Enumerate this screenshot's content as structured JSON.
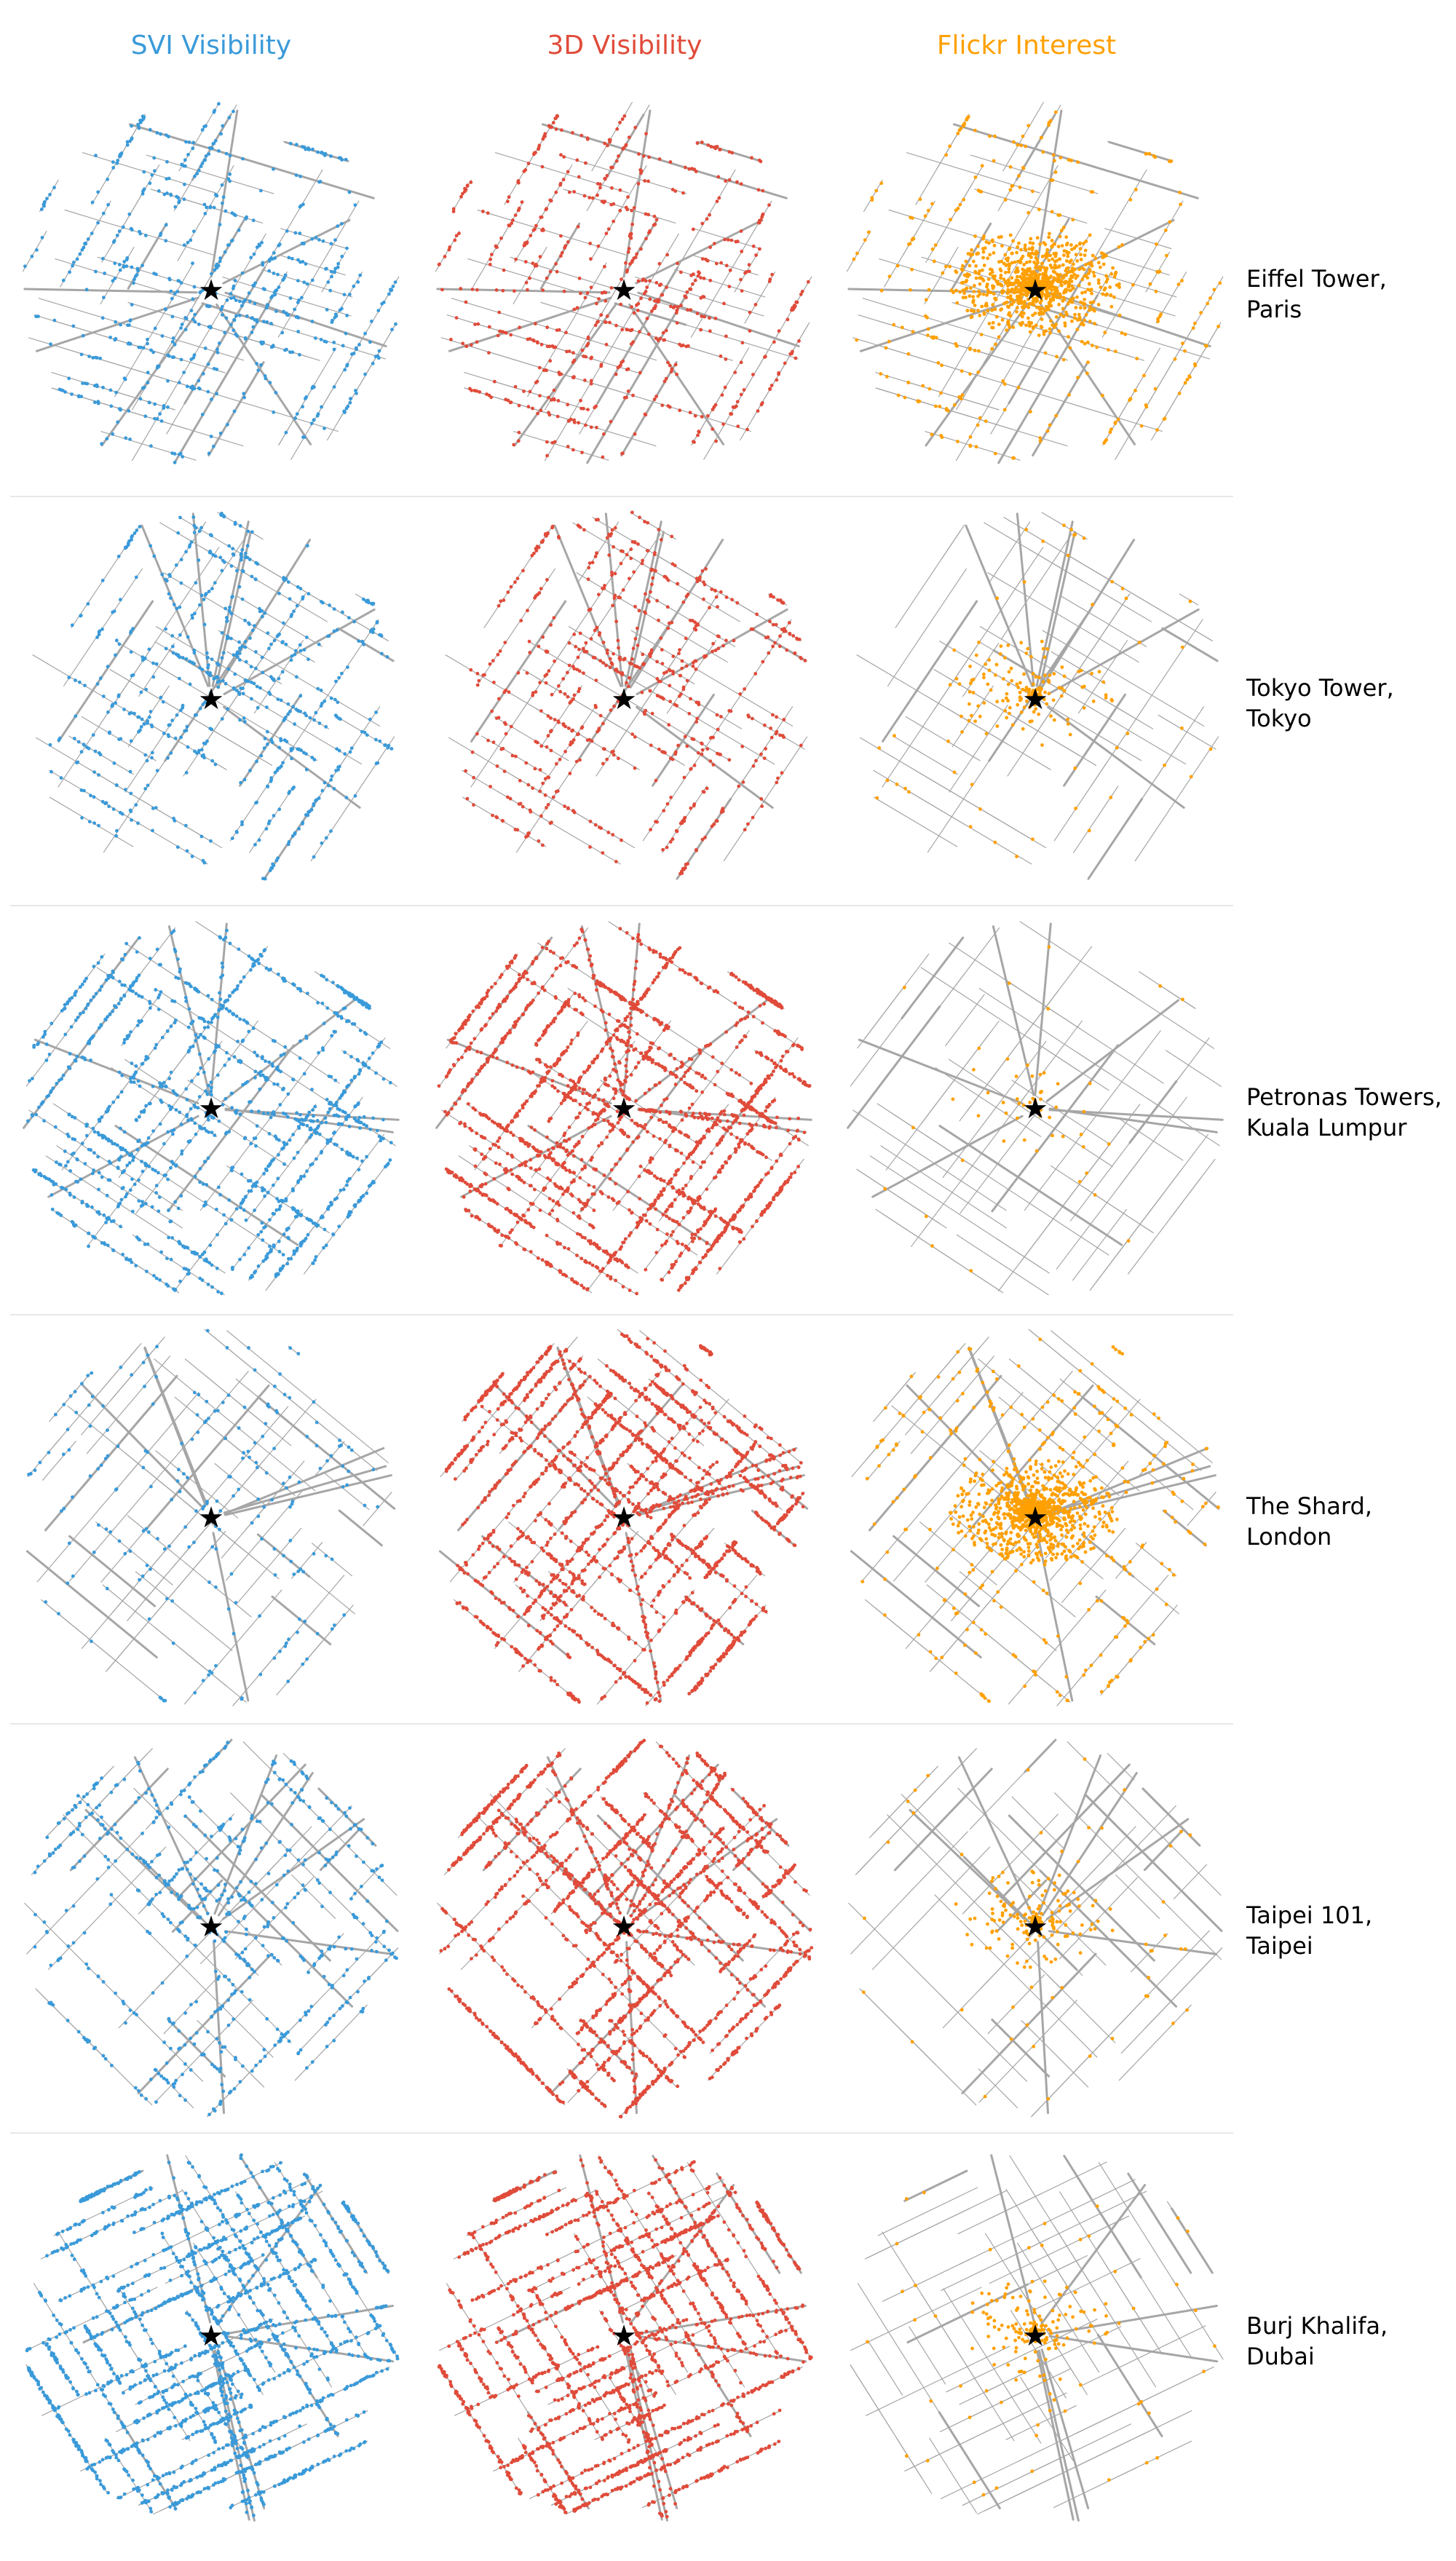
{
  "columns": [
    {
      "title": "SVI Visibility",
      "color": "#3a9ad9"
    },
    {
      "title": "3D Visibility",
      "color": "#e04b3a"
    },
    {
      "title": "Flickr Interest",
      "color": "#ffa000"
    }
  ],
  "rows": [
    {
      "landmark": "Eiffel Tower,",
      "city": "Paris",
      "density": {
        "svi": "medium",
        "3d": "medium",
        "flickr": "high"
      }
    },
    {
      "landmark": "Tokyo Tower,",
      "city": "Tokyo",
      "density": {
        "svi": "medium",
        "3d": "medium",
        "flickr": "low"
      }
    },
    {
      "landmark": "Petronas Towers,",
      "city": "Kuala Lumpur",
      "density": {
        "svi": "high",
        "3d": "very high",
        "flickr": "very low"
      }
    },
    {
      "landmark": "The Shard,",
      "city": "London",
      "density": {
        "svi": "low",
        "3d": "very high",
        "flickr": "high"
      }
    },
    {
      "landmark": "Taipei 101,",
      "city": "Taipei",
      "density": {
        "svi": "medium",
        "3d": "very high",
        "flickr": "low"
      }
    },
    {
      "landmark": "Burj Khalifa,",
      "city": "Dubai",
      "density": {
        "svi": "very high",
        "3d": "very high",
        "flickr": "low"
      }
    }
  ],
  "marker": {
    "icon": "star-icon",
    "color": "#000000"
  },
  "road_color": "#a6a6a6"
}
